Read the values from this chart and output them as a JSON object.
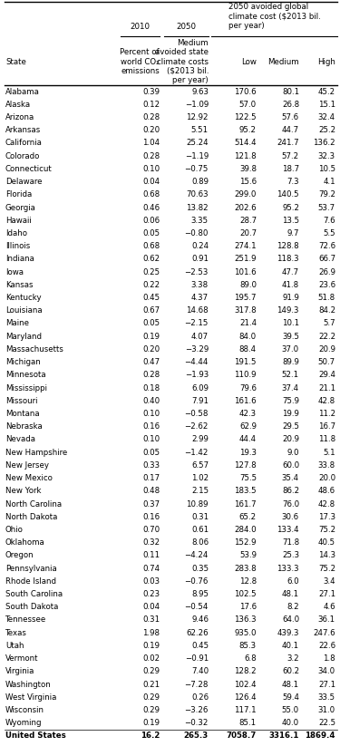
{
  "col_headers_line1": [
    "",
    "2010",
    "2050",
    "2050 avoided global"
  ],
  "col_headers_line2": [
    "",
    "",
    "",
    "climate cost ($2013 bil."
  ],
  "col_headers_line3": [
    "",
    "",
    "Medium",
    "per year)"
  ],
  "col_headers_line4": [
    "",
    "Percent of",
    "avoided state",
    ""
  ],
  "col_headers_line5": [
    "",
    "world CO₂",
    "climate costs",
    ""
  ],
  "col_headers_line6": [
    "State",
    "emissions",
    "($2013 bil.",
    "Low    Medium    High"
  ],
  "col_headers_line7": [
    "",
    "",
    "per year)",
    ""
  ],
  "top_group_labels": [
    "2010",
    "2050",
    "2050 avoided global\nclimate cost ($2013 bil.\nper year)"
  ],
  "sub_col_labels": [
    "State",
    "Percent of\nworld CO₂\nemissions",
    "Medium\navoided state\nclimate costs\n($2013 bil.\nper year)",
    "Low",
    "Medium",
    "High"
  ],
  "rows": [
    [
      "Alabama",
      "0.39",
      "9.63",
      "170.6",
      "80.1",
      "45.2"
    ],
    [
      "Alaska",
      "0.12",
      "−1.09",
      "57.0",
      "26.8",
      "15.1"
    ],
    [
      "Arizona",
      "0.28",
      "12.92",
      "122.5",
      "57.6",
      "32.4"
    ],
    [
      "Arkansas",
      "0.20",
      "5.51",
      "95.2",
      "44.7",
      "25.2"
    ],
    [
      "California",
      "1.04",
      "25.24",
      "514.4",
      "241.7",
      "136.2"
    ],
    [
      "Colorado",
      "0.28",
      "−1.19",
      "121.8",
      "57.2",
      "32.3"
    ],
    [
      "Connecticut",
      "0.10",
      "−0.75",
      "39.8",
      "18.7",
      "10.5"
    ],
    [
      "Delaware",
      "0.04",
      "0.89",
      "15.6",
      "7.3",
      "4.1"
    ],
    [
      "Florida",
      "0.68",
      "70.63",
      "299.0",
      "140.5",
      "79.2"
    ],
    [
      "Georgia",
      "0.46",
      "13.82",
      "202.6",
      "95.2",
      "53.7"
    ],
    [
      "Hawaii",
      "0.06",
      "3.35",
      "28.7",
      "13.5",
      "7.6"
    ],
    [
      "Idaho",
      "0.05",
      "−0.80",
      "20.7",
      "9.7",
      "5.5"
    ],
    [
      "Illinois",
      "0.68",
      "0.24",
      "274.1",
      "128.8",
      "72.6"
    ],
    [
      "Indiana",
      "0.62",
      "0.91",
      "251.9",
      "118.3",
      "66.7"
    ],
    [
      "Iowa",
      "0.25",
      "−2.53",
      "101.6",
      "47.7",
      "26.9"
    ],
    [
      "Kansas",
      "0.22",
      "3.38",
      "89.0",
      "41.8",
      "23.6"
    ],
    [
      "Kentucky",
      "0.45",
      "4.37",
      "195.7",
      "91.9",
      "51.8"
    ],
    [
      "Louisiana",
      "0.67",
      "14.68",
      "317.8",
      "149.3",
      "84.2"
    ],
    [
      "Maine",
      "0.05",
      "−2.15",
      "21.4",
      "10.1",
      "5.7"
    ],
    [
      "Maryland",
      "0.19",
      "4.07",
      "84.0",
      "39.5",
      "22.2"
    ],
    [
      "Massachusetts",
      "0.20",
      "−3.29",
      "88.4",
      "37.0",
      "20.9"
    ],
    [
      "Michigan",
      "0.47",
      "−4.44",
      "191.5",
      "89.9",
      "50.7"
    ],
    [
      "Minnesota",
      "0.28",
      "−1.93",
      "110.9",
      "52.1",
      "29.4"
    ],
    [
      "Mississippi",
      "0.18",
      "6.09",
      "79.6",
      "37.4",
      "21.1"
    ],
    [
      "Missouri",
      "0.40",
      "7.91",
      "161.6",
      "75.9",
      "42.8"
    ],
    [
      "Montana",
      "0.10",
      "−0.58",
      "42.3",
      "19.9",
      "11.2"
    ],
    [
      "Nebraska",
      "0.16",
      "−2.62",
      "62.9",
      "29.5",
      "16.7"
    ],
    [
      "Nevada",
      "0.10",
      "2.99",
      "44.4",
      "20.9",
      "11.8"
    ],
    [
      "New Hampshire",
      "0.05",
      "−1.42",
      "19.3",
      "9.0",
      "5.1"
    ],
    [
      "New Jersey",
      "0.33",
      "6.57",
      "127.8",
      "60.0",
      "33.8"
    ],
    [
      "New Mexico",
      "0.17",
      "1.02",
      "75.5",
      "35.4",
      "20.0"
    ],
    [
      "New York",
      "0.48",
      "2.15",
      "183.5",
      "86.2",
      "48.6"
    ],
    [
      "North Carolina",
      "0.37",
      "10.89",
      "161.7",
      "76.0",
      "42.8"
    ],
    [
      "North Dakota",
      "0.16",
      "0.31",
      "65.2",
      "30.6",
      "17.3"
    ],
    [
      "Ohio",
      "0.70",
      "0.61",
      "284.0",
      "133.4",
      "75.2"
    ],
    [
      "Oklahoma",
      "0.32",
      "8.06",
      "152.9",
      "71.8",
      "40.5"
    ],
    [
      "Oregon",
      "0.11",
      "−4.24",
      "53.9",
      "25.3",
      "14.3"
    ],
    [
      "Pennsylvania",
      "0.74",
      "0.35",
      "283.8",
      "133.3",
      "75.2"
    ],
    [
      "Rhode Island",
      "0.03",
      "−0.76",
      "12.8",
      "6.0",
      "3.4"
    ],
    [
      "South Carolina",
      "0.23",
      "8.95",
      "102.5",
      "48.1",
      "27.1"
    ],
    [
      "South Dakota",
      "0.04",
      "−0.54",
      "17.6",
      "8.2",
      "4.6"
    ],
    [
      "Tennessee",
      "0.31",
      "9.46",
      "136.3",
      "64.0",
      "36.1"
    ],
    [
      "Texas",
      "1.98",
      "62.26",
      "935.0",
      "439.3",
      "247.6"
    ],
    [
      "Utah",
      "0.19",
      "0.45",
      "85.3",
      "40.1",
      "22.6"
    ],
    [
      "Vermont",
      "0.02",
      "−0.91",
      "6.8",
      "3.2",
      "1.8"
    ],
    [
      "Virginia",
      "0.29",
      "7.40",
      "128.2",
      "60.2",
      "34.0"
    ],
    [
      "Washington",
      "0.21",
      "−7.28",
      "102.4",
      "48.1",
      "27.1"
    ],
    [
      "West Virginia",
      "0.29",
      "0.26",
      "126.4",
      "59.4",
      "33.5"
    ],
    [
      "Wisconsin",
      "0.29",
      "−3.26",
      "117.1",
      "55.0",
      "31.0"
    ],
    [
      "Wyoming",
      "0.19",
      "−0.32",
      "85.1",
      "40.0",
      "22.5"
    ],
    [
      "United States",
      "16.2",
      "265.3",
      "7058.7",
      "3316.1",
      "1869.4"
    ]
  ],
  "figsize": [
    3.75,
    8.23
  ],
  "dpi": 100,
  "font_size": 6.2,
  "header_font_size": 6.2
}
